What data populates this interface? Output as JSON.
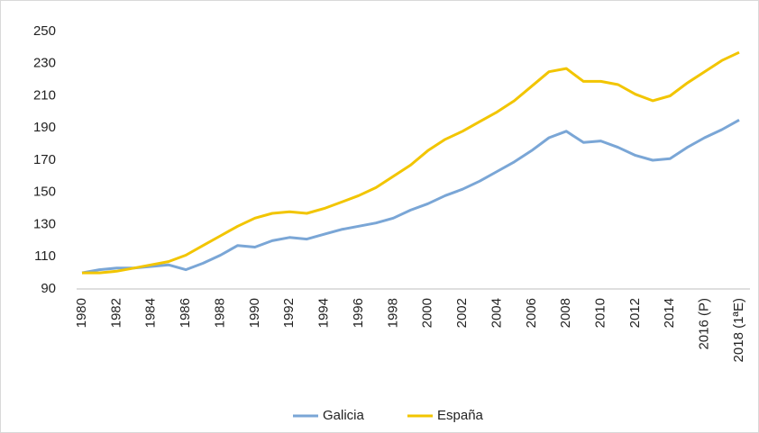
{
  "chart_data": {
    "type": "line",
    "categories": [
      "1980",
      null,
      "1982",
      null,
      "1984",
      null,
      "1986",
      null,
      "1988",
      null,
      "1990",
      null,
      "1992",
      null,
      "1994",
      null,
      "1996",
      null,
      "1998",
      null,
      "2000",
      null,
      "2002",
      null,
      "2004",
      null,
      "2006",
      null,
      "2008",
      null,
      "2010",
      null,
      "2012",
      null,
      "2014",
      null,
      "2016 (P)",
      null,
      "2018 (1ªE)"
    ],
    "series": [
      {
        "name": "Galicia",
        "color": "#7aa6d6",
        "values": [
          100,
          102,
          103,
          103,
          104,
          105,
          102,
          106,
          111,
          117,
          116,
          120,
          122,
          121,
          124,
          127,
          129,
          131,
          134,
          139,
          143,
          148,
          152,
          157,
          163,
          169,
          176,
          184,
          188,
          181,
          182,
          178,
          173,
          170,
          171,
          178,
          184,
          189,
          195
        ]
      },
      {
        "name": "España",
        "color": "#f2c500",
        "values": [
          100,
          100,
          101,
          103,
          105,
          107,
          111,
          117,
          123,
          129,
          134,
          137,
          138,
          137,
          140,
          144,
          148,
          153,
          160,
          167,
          176,
          183,
          188,
          194,
          200,
          207,
          216,
          225,
          227,
          219,
          219,
          217,
          211,
          207,
          210,
          218,
          225,
          232,
          237
        ]
      }
    ],
    "ylim": [
      90,
      250
    ],
    "yticks": [
      90,
      110,
      130,
      150,
      170,
      190,
      210,
      230,
      250
    ],
    "grid": false,
    "legend": "bottom"
  }
}
